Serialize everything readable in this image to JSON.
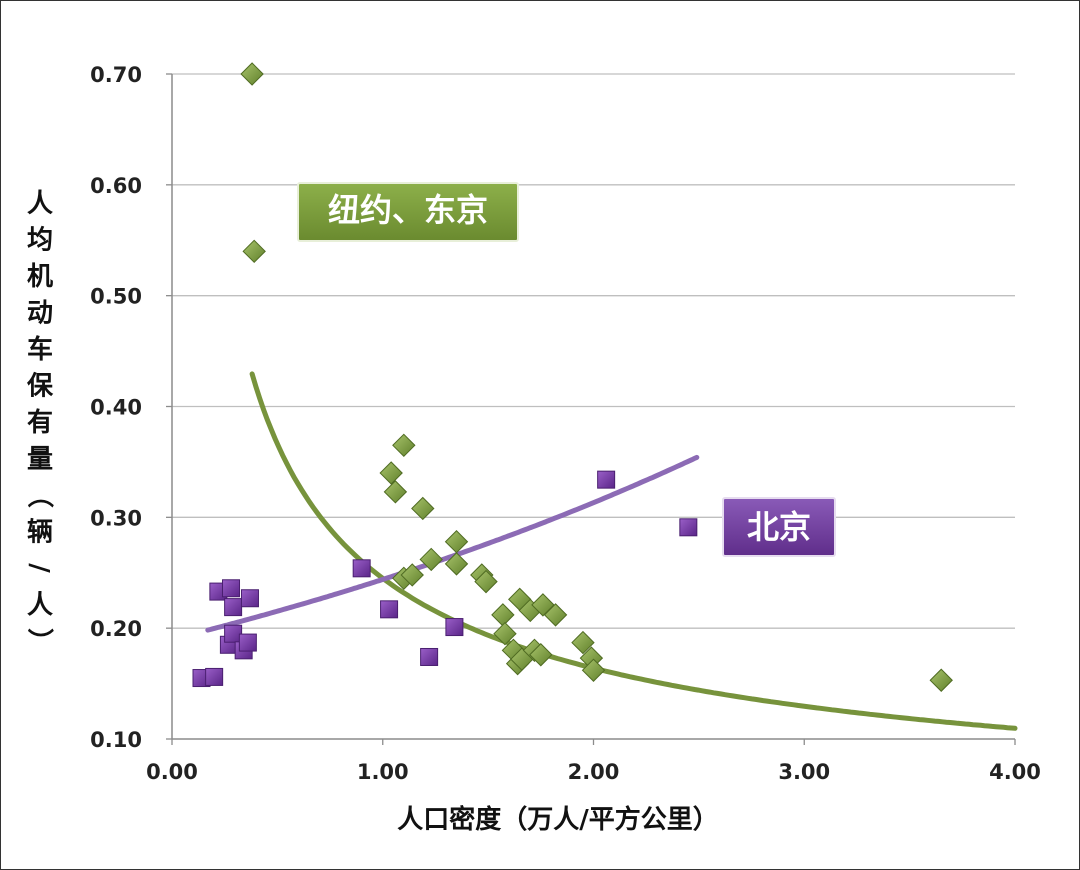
{
  "chart_data": {
    "type": "scatter",
    "xlabel": "人口密度（万人/平方公里）",
    "ylabel": "人均机动车保有量（辆/人）",
    "xlim": [
      0,
      4
    ],
    "ylim": [
      0.1,
      0.7
    ],
    "xticks": [
      "0.00",
      "1.00",
      "2.00",
      "3.00",
      "4.00"
    ],
    "yticks": [
      "0.10",
      "0.20",
      "0.30",
      "0.40",
      "0.50",
      "0.60",
      "0.70"
    ],
    "grid": "horizontal",
    "series": [
      {
        "name": "纽约、东京",
        "marker": "diamond",
        "color": "#77933c",
        "points": [
          [
            0.38,
            0.7
          ],
          [
            0.39,
            0.54
          ],
          [
            1.1,
            0.365
          ],
          [
            1.04,
            0.34
          ],
          [
            1.06,
            0.323
          ],
          [
            1.19,
            0.308
          ],
          [
            1.35,
            0.278
          ],
          [
            1.23,
            0.262
          ],
          [
            1.35,
            0.258
          ],
          [
            1.1,
            0.245
          ],
          [
            1.14,
            0.248
          ],
          [
            1.47,
            0.248
          ],
          [
            1.49,
            0.242
          ],
          [
            1.57,
            0.212
          ],
          [
            1.58,
            0.195
          ],
          [
            1.62,
            0.18
          ],
          [
            1.64,
            0.168
          ],
          [
            1.66,
            0.172
          ],
          [
            1.65,
            0.226
          ],
          [
            1.7,
            0.216
          ],
          [
            1.76,
            0.221
          ],
          [
            1.82,
            0.212
          ],
          [
            1.72,
            0.18
          ],
          [
            1.75,
            0.176
          ],
          [
            1.95,
            0.187
          ],
          [
            1.99,
            0.173
          ],
          [
            2.0,
            0.162
          ],
          [
            3.65,
            0.153
          ]
        ]
      },
      {
        "name": "北京",
        "marker": "square",
        "color": "#7030a0",
        "points": [
          [
            0.14,
            0.155
          ],
          [
            0.2,
            0.156
          ],
          [
            0.22,
            0.233
          ],
          [
            0.28,
            0.236
          ],
          [
            0.29,
            0.219
          ],
          [
            0.27,
            0.185
          ],
          [
            0.29,
            0.195
          ],
          [
            0.34,
            0.18
          ],
          [
            0.36,
            0.187
          ],
          [
            0.37,
            0.227
          ],
          [
            0.9,
            0.254
          ],
          [
            1.03,
            0.217
          ],
          [
            1.22,
            0.174
          ],
          [
            1.34,
            0.201
          ],
          [
            2.06,
            0.334
          ],
          [
            2.45,
            0.291
          ]
        ]
      }
    ],
    "trendlines": [
      {
        "series": "纽约、东京",
        "type": "power",
        "color": "#77933c",
        "x_range": [
          0.38,
          4.0
        ],
        "a": 0.245,
        "b": -0.58
      },
      {
        "series": "北京",
        "type": "exponential",
        "color": "#8c6bb5",
        "x_range": [
          0.17,
          2.49
        ],
        "a": 0.19,
        "b": 0.25
      }
    ],
    "annotations": [
      {
        "text": "纽约、东京",
        "color": "#77933c"
      },
      {
        "text": "北京",
        "color": "#7030a0"
      }
    ]
  }
}
